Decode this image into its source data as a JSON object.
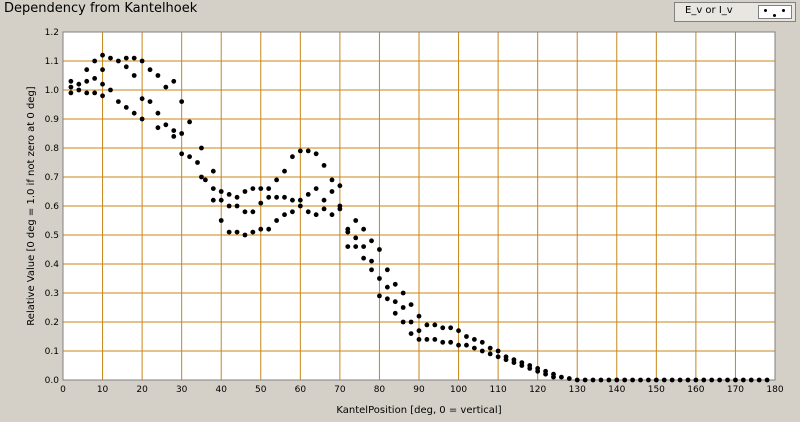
{
  "window": {
    "title": "Dependency from Kantelhoek"
  },
  "legend": {
    "label": "E_v or I_v",
    "icon": "scatter-dots-icon"
  },
  "chart_data": {
    "type": "scatter",
    "title": "Dependency from Kantelhoek",
    "xlabel": "KantelPosition [deg, 0 = vertical]",
    "ylabel": "Relative Value [0 deg = 1.0 if not zero at 0 deg]",
    "xlim": [
      0,
      180
    ],
    "ylim": [
      0,
      1.2
    ],
    "xticks": [
      "0",
      "10",
      "20",
      "30",
      "40",
      "50",
      "60",
      "70",
      "80",
      "90",
      "100",
      "110",
      "120",
      "130",
      "140",
      "150",
      "160",
      "170",
      "180"
    ],
    "yticks": [
      "0.0",
      "0.1",
      "0.2",
      "0.3",
      "0.4",
      "0.5",
      "0.6",
      "0.7",
      "0.8",
      "0.9",
      "1.0",
      "1.1",
      "1.2"
    ],
    "grid": true,
    "legend_position": "top-right",
    "colors": {
      "plot_bg": "#ffffff",
      "grid": "#c8861a",
      "marker": "#000000",
      "panel_bg": "#d4d0c8"
    },
    "series": [
      {
        "name": "E_v or I_v",
        "points": [
          [
            2,
            1.03
          ],
          [
            2,
            1.01
          ],
          [
            2,
            0.99
          ],
          [
            4,
            1.02
          ],
          [
            4,
            1.0
          ],
          [
            6,
            1.07
          ],
          [
            6,
            1.03
          ],
          [
            6,
            0.99
          ],
          [
            8,
            1.1
          ],
          [
            8,
            1.04
          ],
          [
            8,
            0.99
          ],
          [
            10,
            1.12
          ],
          [
            10,
            1.07
          ],
          [
            10,
            1.02
          ],
          [
            10,
            0.98
          ],
          [
            12,
            1.11
          ],
          [
            12,
            1.0
          ],
          [
            14,
            1.1
          ],
          [
            14,
            0.96
          ],
          [
            16,
            1.11
          ],
          [
            16,
            1.08
          ],
          [
            16,
            0.94
          ],
          [
            18,
            1.11
          ],
          [
            18,
            1.05
          ],
          [
            18,
            0.92
          ],
          [
            20,
            1.1
          ],
          [
            20,
            0.97
          ],
          [
            20,
            0.9
          ],
          [
            22,
            1.07
          ],
          [
            22,
            0.96
          ],
          [
            24,
            1.05
          ],
          [
            24,
            0.92
          ],
          [
            24,
            0.87
          ],
          [
            26,
            1.01
          ],
          [
            26,
            0.88
          ],
          [
            28,
            1.03
          ],
          [
            28,
            0.84
          ],
          [
            28,
            0.86
          ],
          [
            30,
            0.96
          ],
          [
            30,
            0.78
          ],
          [
            30,
            0.85
          ],
          [
            32,
            0.89
          ],
          [
            32,
            0.77
          ],
          [
            34,
            0.75
          ],
          [
            35,
            0.8
          ],
          [
            35,
            0.7
          ],
          [
            36,
            0.69
          ],
          [
            38,
            0.72
          ],
          [
            38,
            0.66
          ],
          [
            38,
            0.62
          ],
          [
            40,
            0.65
          ],
          [
            40,
            0.62
          ],
          [
            40,
            0.55
          ],
          [
            42,
            0.64
          ],
          [
            42,
            0.6
          ],
          [
            42,
            0.51
          ],
          [
            44,
            0.63
          ],
          [
            44,
            0.6
          ],
          [
            44,
            0.51
          ],
          [
            46,
            0.65
          ],
          [
            46,
            0.58
          ],
          [
            46,
            0.5
          ],
          [
            48,
            0.66
          ],
          [
            48,
            0.58
          ],
          [
            48,
            0.51
          ],
          [
            50,
            0.66
          ],
          [
            50,
            0.61
          ],
          [
            50,
            0.52
          ],
          [
            52,
            0.66
          ],
          [
            52,
            0.63
          ],
          [
            52,
            0.52
          ],
          [
            54,
            0.69
          ],
          [
            54,
            0.63
          ],
          [
            54,
            0.55
          ],
          [
            56,
            0.72
          ],
          [
            56,
            0.63
          ],
          [
            56,
            0.57
          ],
          [
            58,
            0.77
          ],
          [
            58,
            0.62
          ],
          [
            58,
            0.58
          ],
          [
            60,
            0.79
          ],
          [
            60,
            0.62
          ],
          [
            60,
            0.6
          ],
          [
            62,
            0.79
          ],
          [
            62,
            0.64
          ],
          [
            62,
            0.58
          ],
          [
            64,
            0.78
          ],
          [
            64,
            0.66
          ],
          [
            64,
            0.57
          ],
          [
            66,
            0.74
          ],
          [
            66,
            0.62
          ],
          [
            66,
            0.59
          ],
          [
            68,
            0.69
          ],
          [
            68,
            0.65
          ],
          [
            68,
            0.57
          ],
          [
            70,
            0.67
          ],
          [
            70,
            0.6
          ],
          [
            70,
            0.59
          ],
          [
            72,
            0.51
          ],
          [
            72,
            0.46
          ],
          [
            72,
            0.52
          ],
          [
            74,
            0.55
          ],
          [
            74,
            0.49
          ],
          [
            74,
            0.46
          ],
          [
            76,
            0.52
          ],
          [
            76,
            0.46
          ],
          [
            76,
            0.42
          ],
          [
            78,
            0.48
          ],
          [
            78,
            0.41
          ],
          [
            78,
            0.38
          ],
          [
            80,
            0.45
          ],
          [
            80,
            0.35
          ],
          [
            80,
            0.29
          ],
          [
            82,
            0.38
          ],
          [
            82,
            0.32
          ],
          [
            82,
            0.28
          ],
          [
            84,
            0.33
          ],
          [
            84,
            0.27
          ],
          [
            84,
            0.23
          ],
          [
            86,
            0.3
          ],
          [
            86,
            0.25
          ],
          [
            86,
            0.2
          ],
          [
            88,
            0.26
          ],
          [
            88,
            0.2
          ],
          [
            88,
            0.16
          ],
          [
            90,
            0.22
          ],
          [
            90,
            0.17
          ],
          [
            90,
            0.14
          ],
          [
            92,
            0.19
          ],
          [
            92,
            0.14
          ],
          [
            94,
            0.19
          ],
          [
            94,
            0.14
          ],
          [
            96,
            0.18
          ],
          [
            96,
            0.13
          ],
          [
            98,
            0.18
          ],
          [
            98,
            0.13
          ],
          [
            100,
            0.17
          ],
          [
            100,
            0.12
          ],
          [
            102,
            0.15
          ],
          [
            102,
            0.12
          ],
          [
            104,
            0.14
          ],
          [
            104,
            0.11
          ],
          [
            106,
            0.13
          ],
          [
            106,
            0.1
          ],
          [
            108,
            0.11
          ],
          [
            108,
            0.09
          ],
          [
            110,
            0.1
          ],
          [
            110,
            0.08
          ],
          [
            112,
            0.08
          ],
          [
            112,
            0.07
          ],
          [
            114,
            0.07
          ],
          [
            114,
            0.06
          ],
          [
            116,
            0.06
          ],
          [
            116,
            0.05
          ],
          [
            118,
            0.05
          ],
          [
            118,
            0.04
          ],
          [
            120,
            0.04
          ],
          [
            120,
            0.03
          ],
          [
            122,
            0.03
          ],
          [
            122,
            0.02
          ],
          [
            124,
            0.02
          ],
          [
            124,
            0.01
          ],
          [
            126,
            0.01
          ],
          [
            128,
            0.005
          ],
          [
            130,
            0.0
          ],
          [
            132,
            0.0
          ],
          [
            134,
            0.0
          ],
          [
            136,
            0.0
          ],
          [
            138,
            0.0
          ],
          [
            140,
            0.0
          ],
          [
            142,
            0.0
          ],
          [
            144,
            0.0
          ],
          [
            146,
            0.0
          ],
          [
            148,
            0.0
          ],
          [
            150,
            0.0
          ],
          [
            152,
            0.0
          ],
          [
            154,
            0.0
          ],
          [
            156,
            0.0
          ],
          [
            158,
            0.0
          ],
          [
            160,
            0.0
          ],
          [
            162,
            0.0
          ],
          [
            164,
            0.0
          ],
          [
            166,
            0.0
          ],
          [
            168,
            0.0
          ],
          [
            170,
            0.0
          ],
          [
            172,
            0.0
          ],
          [
            174,
            0.0
          ],
          [
            176,
            0.0
          ],
          [
            178,
            0.0
          ]
        ]
      }
    ]
  }
}
